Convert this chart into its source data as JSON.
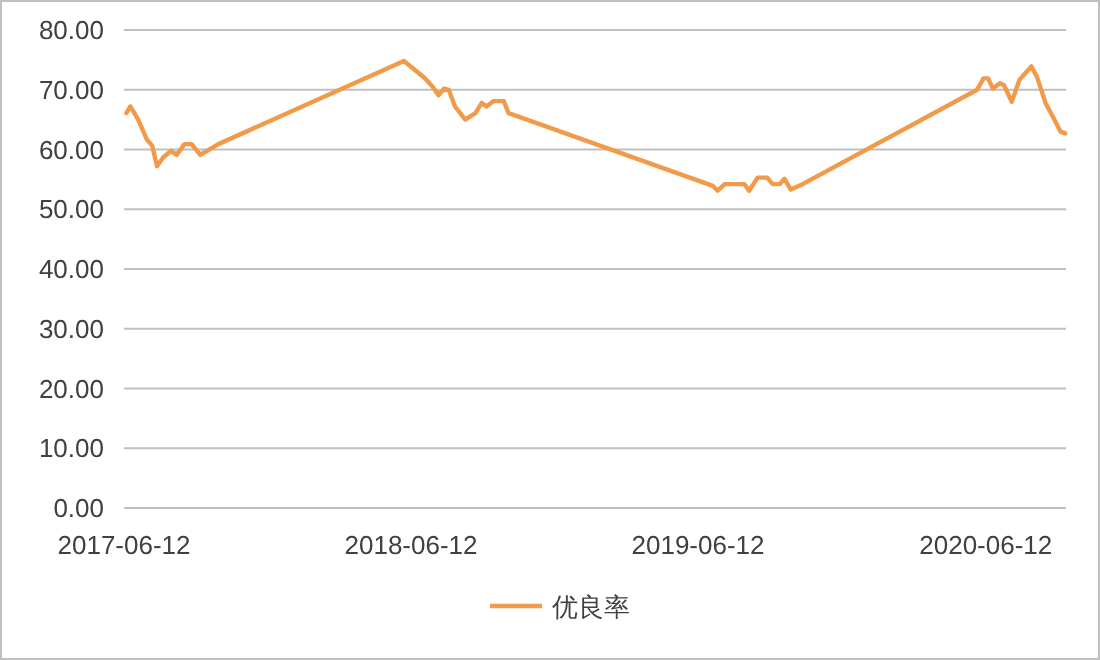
{
  "chart_data": {
    "type": "line",
    "legend": "bottom",
    "grid": "y",
    "line_style": "solid",
    "marker": "none",
    "xlim": [
      "2017-06-12",
      "2020-09-22"
    ],
    "xticks": [
      "2017-06-12",
      "2018-06-12",
      "2019-06-12",
      "2020-06-12"
    ],
    "ylim": [
      0,
      80
    ],
    "yticks": [
      {
        "value": 0,
        "label": "0.00"
      },
      {
        "value": 10,
        "label": "10.00"
      },
      {
        "value": 20,
        "label": "20.00"
      },
      {
        "value": 30,
        "label": "30.00"
      },
      {
        "value": 40,
        "label": "40.00"
      },
      {
        "value": 50,
        "label": "50.00"
      },
      {
        "value": 60,
        "label": "60.00"
      },
      {
        "value": 70,
        "label": "70.00"
      },
      {
        "value": 80,
        "label": "80.00"
      }
    ],
    "x": [
      "2017-06-15",
      "2017-06-20",
      "2017-06-30",
      "2017-07-11",
      "2017-07-18",
      "2017-07-24",
      "2017-08-01",
      "2017-08-11",
      "2017-08-18",
      "2017-08-28",
      "2017-09-06",
      "2017-09-17",
      "2017-10-10",
      "2018-06-03",
      "2018-06-17",
      "2018-06-29",
      "2018-07-09",
      "2018-07-17",
      "2018-07-24",
      "2018-07-30",
      "2018-08-07",
      "2018-08-20",
      "2018-09-02",
      "2018-09-10",
      "2018-09-16",
      "2018-09-25",
      "2018-10-08",
      "2018-10-14",
      "2019-07-01",
      "2019-07-07",
      "2019-07-16",
      "2019-08-10",
      "2019-08-16",
      "2019-08-27",
      "2019-09-08",
      "2019-09-15",
      "2019-09-24",
      "2019-09-30",
      "2019-10-08",
      "2019-10-23",
      "2020-06-01",
      "2020-06-09",
      "2020-06-15",
      "2020-06-21",
      "2020-06-30",
      "2020-07-05",
      "2020-07-15",
      "2020-07-25",
      "2020-08-09",
      "2020-08-16",
      "2020-08-27",
      "2020-09-04",
      "2020-09-15",
      "2020-09-21"
    ],
    "series": [
      {
        "name": "优良率",
        "color": "#f09a4a",
        "values": [
          66.1,
          67.2,
          65.0,
          61.7,
          60.6,
          57.2,
          58.7,
          59.8,
          59.1,
          60.9,
          60.9,
          59.1,
          60.9,
          74.8,
          73.3,
          72.0,
          70.6,
          69.1,
          70.2,
          70.0,
          67.2,
          65.0,
          66.1,
          67.8,
          67.2,
          68.1,
          68.1,
          66.1,
          53.9,
          53.1,
          54.2,
          54.2,
          53.1,
          55.3,
          55.3,
          54.2,
          54.2,
          55.1,
          53.3,
          54.2,
          70.0,
          71.9,
          71.9,
          70.2,
          71.1,
          70.8,
          68.0,
          71.7,
          73.9,
          72.2,
          67.8,
          65.8,
          63.0,
          62.7
        ]
      }
    ]
  }
}
